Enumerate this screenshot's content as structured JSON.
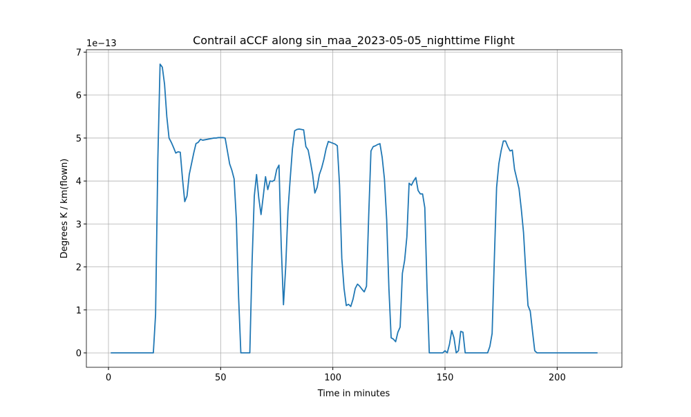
{
  "chart_data": {
    "type": "line",
    "title": "Contrail aCCF along sin_maa_2023-05-05_nighttime Flight",
    "x_label": "Time in minutes",
    "y_label": "Degrees K / km(flown)",
    "y_offset_label": "1e−13",
    "x": [
      1,
      20,
      21,
      22,
      23,
      24,
      25,
      26,
      27,
      28,
      29,
      30,
      31,
      32,
      33,
      34,
      35,
      36,
      37,
      38,
      39,
      40,
      41,
      42,
      43,
      44,
      45,
      46,
      47,
      48,
      49,
      50,
      51,
      52,
      53,
      54,
      55,
      56,
      57,
      58,
      59,
      63,
      64,
      65,
      66,
      67,
      68,
      69,
      70,
      71,
      72,
      73,
      74,
      75,
      76,
      77,
      78,
      79,
      80,
      81,
      82,
      83,
      84,
      85,
      86,
      87,
      88,
      89,
      90,
      91,
      92,
      93,
      94,
      95,
      96,
      97,
      98,
      99,
      100,
      101,
      102,
      103,
      104,
      105,
      106,
      107,
      108,
      109,
      110,
      111,
      112,
      113,
      114,
      115,
      116,
      117,
      118,
      119,
      120,
      121,
      122,
      123,
      124,
      125,
      126,
      127,
      128,
      129,
      130,
      131,
      132,
      133,
      134,
      135,
      136,
      137,
      138,
      139,
      140,
      141,
      142,
      143,
      149,
      150,
      151,
      152,
      153,
      154,
      155,
      156,
      157,
      158,
      159,
      169,
      170,
      171,
      172,
      173,
      174,
      175,
      176,
      177,
      178,
      179,
      180,
      181,
      182,
      183,
      184,
      185,
      186,
      187,
      188,
      189,
      190,
      191,
      218
    ],
    "series": [
      {
        "name": "aCCF",
        "color": "#1f77b4",
        "values": [
          0,
          0,
          0.9,
          4.5,
          6.72,
          6.65,
          6.25,
          5.5,
          5.0,
          4.9,
          4.78,
          4.65,
          4.68,
          4.67,
          4.05,
          3.52,
          3.65,
          4.15,
          4.4,
          4.65,
          4.87,
          4.9,
          4.97,
          4.95,
          4.96,
          4.97,
          4.98,
          4.99,
          5.0,
          5.0,
          5.01,
          5.01,
          5.01,
          5.0,
          4.7,
          4.4,
          4.25,
          4.05,
          3.1,
          1.3,
          0,
          0,
          2.1,
          3.65,
          4.15,
          3.6,
          3.22,
          3.65,
          4.1,
          3.8,
          4.0,
          3.99,
          4.02,
          4.27,
          4.37,
          2.5,
          1.12,
          2.0,
          3.3,
          4.05,
          4.75,
          5.17,
          5.2,
          5.21,
          5.2,
          5.19,
          4.8,
          4.72,
          4.45,
          4.15,
          3.72,
          3.85,
          4.15,
          4.3,
          4.5,
          4.75,
          4.92,
          4.9,
          4.88,
          4.86,
          4.82,
          3.9,
          2.2,
          1.5,
          1.1,
          1.13,
          1.08,
          1.25,
          1.5,
          1.6,
          1.55,
          1.48,
          1.42,
          1.55,
          3.2,
          4.7,
          4.8,
          4.82,
          4.85,
          4.87,
          4.55,
          4.05,
          3.1,
          1.5,
          0.35,
          0.32,
          0.26,
          0.48,
          0.6,
          1.85,
          2.15,
          2.7,
          3.95,
          3.9,
          4.0,
          4.08,
          3.78,
          3.7,
          3.7,
          3.38,
          1.5,
          0,
          0,
          0.05,
          0,
          0.2,
          0.52,
          0.35,
          0,
          0.05,
          0.5,
          0.48,
          0,
          0,
          0.15,
          0.45,
          2.2,
          3.85,
          4.4,
          4.7,
          4.93,
          4.93,
          4.8,
          4.7,
          4.72,
          4.27,
          4.05,
          3.82,
          3.35,
          2.8,
          1.9,
          1.1,
          0.97,
          0.5,
          0.05,
          0,
          0
        ]
      }
    ],
    "xlim": [
      -9.85,
      228.85
    ],
    "ylim": [
      -0.336,
      7.056
    ],
    "xticks": [
      0,
      50,
      100,
      150,
      200
    ],
    "yticks": [
      0,
      1,
      2,
      3,
      4,
      5,
      6,
      7
    ],
    "grid": true
  }
}
